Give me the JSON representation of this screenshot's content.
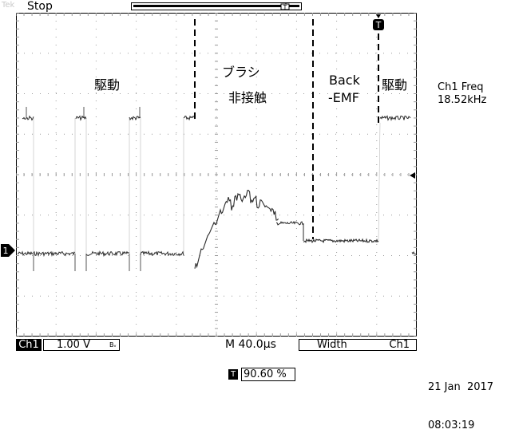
{
  "header": {
    "run_state": "Stop",
    "ghost_brand": "Tek"
  },
  "annotations": {
    "drive_left": "駆動",
    "brush_line1": "ブラシ",
    "brush_line2": "非接触",
    "back_emf_line1": "Back",
    "back_emf_line2": "-EMF",
    "drive_right": "駆動"
  },
  "measurement": {
    "label": "Ch1 Freq",
    "value": "18.52kHz"
  },
  "status": {
    "channel": "Ch1",
    "volts_per_div": "1.00 V",
    "bw_mark": "Bᵥ",
    "timebase": "M 40.0µs",
    "trigger_type": "Width",
    "trigger_source": "Ch1"
  },
  "position": {
    "t_icon": "T",
    "value": "90.60 %"
  },
  "datetime": {
    "date": "21 Jan  2017",
    "time": "08:03:19"
  },
  "markers": {
    "channel_marker": "1",
    "trigger_marker": "T"
  },
  "colors": {
    "trace": "#2a2a2a",
    "grid": "#9a9a9a",
    "background": "#ffffff"
  }
}
